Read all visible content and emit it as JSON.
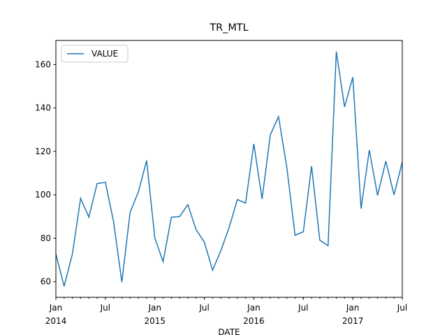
{
  "chart_data": {
    "type": "line",
    "title": "TR_MTL",
    "x_label": "DATE",
    "x": [
      "2014-01",
      "2014-02",
      "2014-03",
      "2014-04",
      "2014-05",
      "2014-06",
      "2014-07",
      "2014-08",
      "2014-09",
      "2014-10",
      "2014-11",
      "2014-12",
      "2015-01",
      "2015-02",
      "2015-03",
      "2015-04",
      "2015-05",
      "2015-06",
      "2015-07",
      "2015-08",
      "2015-09",
      "2015-10",
      "2015-11",
      "2015-12",
      "2016-01",
      "2016-02",
      "2016-03",
      "2016-04",
      "2016-05",
      "2016-06",
      "2016-07",
      "2016-08",
      "2016-09",
      "2016-10",
      "2016-11",
      "2016-12",
      "2017-01",
      "2017-02",
      "2017-03",
      "2017-04",
      "2017-05",
      "2017-06",
      "2017-07"
    ],
    "series": [
      {
        "name": "VALUE",
        "color": "#1f77b4",
        "values": [
          72.7,
          57.9,
          72.7,
          98.4,
          89.7,
          105.2,
          105.8,
          87.5,
          59.8,
          92,
          101.3,
          115.8,
          80.1,
          69.2,
          89.7,
          90,
          95.5,
          84,
          78.2,
          65.3,
          74.3,
          84.9,
          97.8,
          96.2,
          123.5,
          98.1,
          127.7,
          136,
          112.6,
          81.4,
          83,
          113.2,
          79.1,
          76.6,
          166,
          140.5,
          154.2,
          93.6,
          120.6,
          99.7,
          115.5,
          100,
          115.2
        ]
      }
    ],
    "xlim": [
      "2014-01",
      "2017-07"
    ],
    "xticks": [
      {
        "value": "2014-01",
        "label": "Jan",
        "year": "2014"
      },
      {
        "value": "2014-07",
        "label": "Jul"
      },
      {
        "value": "2015-01",
        "label": "Jan",
        "year": "2015"
      },
      {
        "value": "2015-07",
        "label": "Jul"
      },
      {
        "value": "2016-01",
        "label": "Jan",
        "year": "2016"
      },
      {
        "value": "2016-07",
        "label": "Jul"
      },
      {
        "value": "2017-01",
        "label": "Jan",
        "year": "2017"
      },
      {
        "value": "2017-07",
        "label": "Jul"
      }
    ],
    "ylim": [
      52.8,
      171.1
    ],
    "yticks": [
      60,
      80,
      100,
      120,
      140,
      160
    ],
    "grid": false,
    "legend": "upper-left"
  }
}
